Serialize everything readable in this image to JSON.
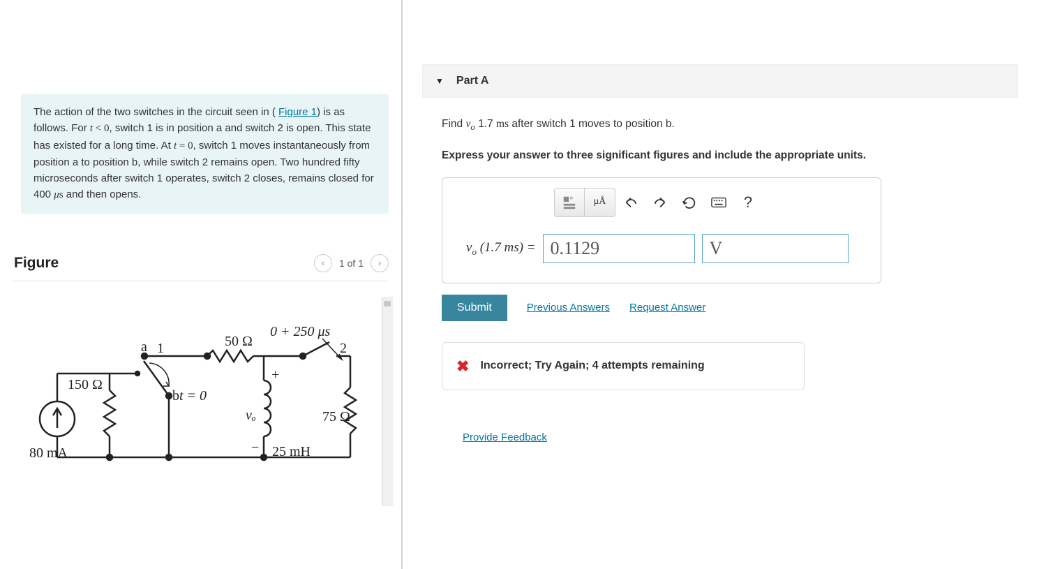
{
  "problem": {
    "html": "The action of the two switches in the circuit seen in ( <a href='#' data-name='figure-link' data-interactable='true'>Figure 1</a>) is as follows. For <span class='math'><span class='mi'>t</span> &lt; 0</span>, switch 1 is in position a and switch 2 is open. This state has existed for a long time. At <span class='math'><span class='mi'>t</span> = 0</span>, switch 1 moves instantaneously from position a to position b, while switch 2 remains open. Two hundred fifty microseconds after switch 1 operates, switch 2 closes, remains closed for 400 <span class='math'><span class='mi'>μ</span>s</span> and then opens."
  },
  "figure": {
    "title": "Figure",
    "pager": "1 of 1"
  },
  "circuit": {
    "source_current": "80 mA",
    "source_resistor": "150 Ω",
    "series_resistor": "50 Ω",
    "parallel_resistor": "75 Ω",
    "inductor": "25 mH",
    "switch1_pos_a": "a",
    "switch1_pos_b": "b",
    "switch1_num": "1",
    "switch2_num": "2",
    "t_label": "t = 0",
    "time_offset": "0 + 250 μs",
    "v_label": "vₒ",
    "plus": "+",
    "minus": "−"
  },
  "part": {
    "caret": "▼",
    "title": "Part A",
    "question_html": "Find <span class='math'><span class='mi'>v<sub>o</sub></span></span> 1.7 <span class='math'>ms</span> after switch 1 moves to position b.",
    "express": "Express your answer to three significant figures and include the appropriate units.",
    "label_html": "<span class='mi'>v<sub>o</sub></span> (1.7 ms) =",
    "value": "0.1129",
    "unit": "V",
    "submit": "Submit",
    "prev_answers": "Previous Answers",
    "request_answer": "Request Answer",
    "feedback": "Incorrect; Try Again; 4 attempts remaining",
    "provide_feedback": "Provide Feedback"
  },
  "colors": {
    "box_bg": "#e8f4f5",
    "link": "#0077a3",
    "submit_bg": "#37869e",
    "error": "#d9252a",
    "input_border": "#5aa3c8"
  }
}
